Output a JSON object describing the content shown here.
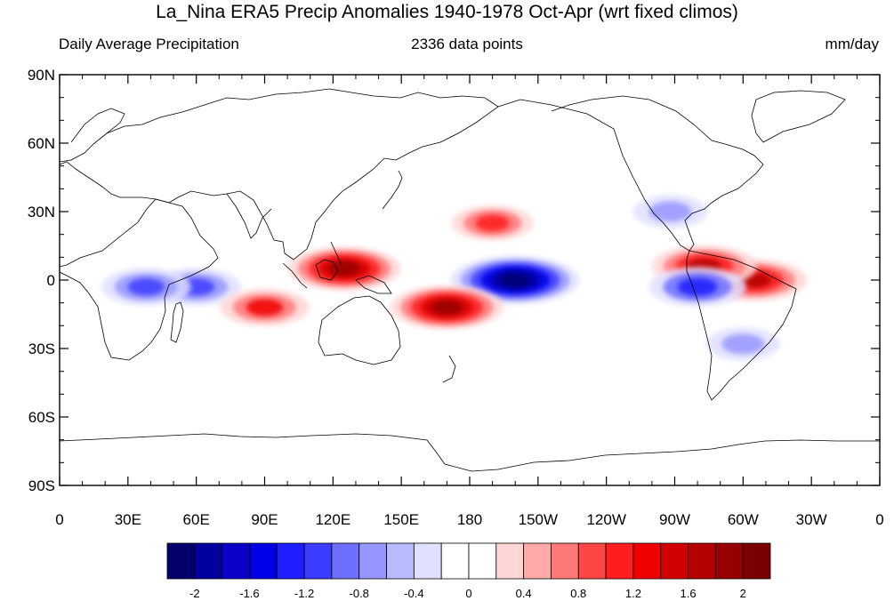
{
  "title": "La_Nina ERA5 Precip Anomalies 1940-1978 Oct-Apr (wrt fixed climos)",
  "subtitle_left": "Daily Average Precipitation",
  "subtitle_center": "2336 data points",
  "subtitle_right": "mm/day",
  "map": {
    "projection": "cylindrical equidistant",
    "center_longitude": 180,
    "lat_range": [
      -90,
      90
    ],
    "lon_range": [
      0,
      360
    ],
    "lat_labels": [
      "90N",
      "60N",
      "30N",
      "0",
      "30S",
      "60S",
      "90S"
    ],
    "lon_labels": [
      "0",
      "30E",
      "60E",
      "90E",
      "120E",
      "150E",
      "180",
      "150W",
      "120W",
      "90W",
      "60W",
      "30W",
      "0"
    ],
    "coastline_color": "#000000",
    "anomaly_regions": [
      {
        "name": "central-pacific-dry",
        "lon": 200,
        "lat": 0,
        "value": -2.2
      },
      {
        "name": "east-indian-ocean-dry",
        "lon": 60,
        "lat": -3,
        "value": -1.2
      },
      {
        "name": "east-africa-dry",
        "lon": 38,
        "lat": -3,
        "value": -1.2
      },
      {
        "name": "maritime-continent-wet",
        "lon": 125,
        "lat": 5,
        "value": 1.8
      },
      {
        "name": "spcz-wet",
        "lon": 170,
        "lat": -12,
        "value": 1.8
      },
      {
        "name": "amazon-wet",
        "lon": 305,
        "lat": 0,
        "value": 1.6
      },
      {
        "name": "colombia-wet",
        "lon": 283,
        "lat": 6,
        "value": 1.6
      },
      {
        "name": "indian-ocean-sw-wet",
        "lon": 90,
        "lat": -12,
        "value": 1.2
      },
      {
        "name": "north-pacific-wet",
        "lon": 190,
        "lat": 25,
        "value": 1.0
      },
      {
        "name": "southeast-us-dry",
        "lon": 268,
        "lat": 30,
        "value": -0.8
      },
      {
        "name": "peru-coast-dry",
        "lon": 280,
        "lat": -3,
        "value": -1.4
      },
      {
        "name": "southeast-south-america-dry",
        "lon": 300,
        "lat": -28,
        "value": -0.8
      }
    ]
  },
  "colorbar": {
    "colors": [
      "#03006e",
      "#0300a0",
      "#0c00c8",
      "#0000e6",
      "#1e1eff",
      "#3c3cff",
      "#6e6eff",
      "#9696ff",
      "#b9b9ff",
      "#e0e0ff",
      "#ffffff",
      "#ffffff",
      "#ffd6d6",
      "#ffaaaa",
      "#ff7878",
      "#ff4646",
      "#ff1e1e",
      "#f00000",
      "#d20000",
      "#b40000",
      "#960000",
      "#780000"
    ],
    "labels": [
      "-2",
      "-1.6",
      "-1.2",
      "-0.8",
      "-0.4",
      "0",
      "0.4",
      "0.8",
      "1.2",
      "1.6",
      "2"
    ]
  }
}
